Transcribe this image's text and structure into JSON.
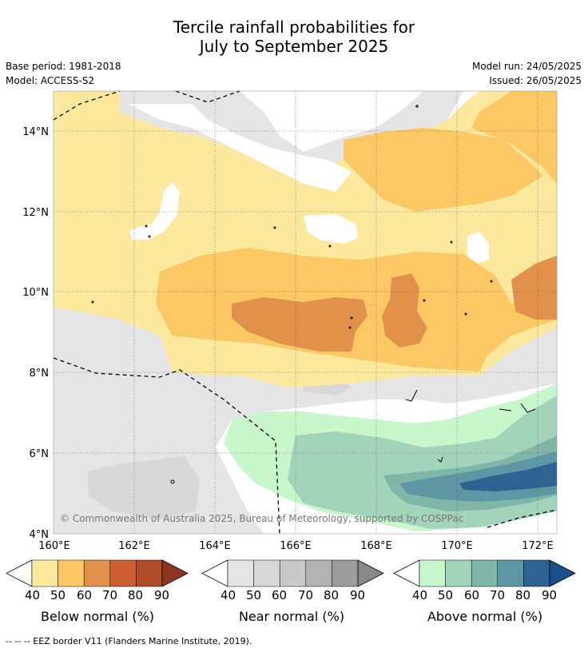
{
  "title": {
    "line1": "Tercile rainfall probabilities for",
    "line2": "July to September 2025"
  },
  "meta": {
    "base_period": "Base period: 1981-2018",
    "model": "Model: ACCESS-S2",
    "model_run": "Model run: 24/05/2025",
    "issued": "Issued: 26/05/2025"
  },
  "map": {
    "lat_labels": [
      "14°N",
      "12°N",
      "10°N",
      "8°N",
      "6°N",
      "4°N"
    ],
    "lon_labels": [
      "160°E",
      "162°E",
      "164°E",
      "166°E",
      "168°E",
      "170°E",
      "172°E"
    ],
    "copyright": "© Commonwealth of Australia 2025, Bureau of Meteorology, supported by COSPPac",
    "colors": {
      "below": [
        "#fde99e",
        "#fbc864",
        "#e2914a",
        "#cc5e32",
        "#b04a28",
        "#8e3521"
      ],
      "near": [
        "#e5e5e5",
        "#d8d8d8",
        "#c8c8c8",
        "#b2b2b2",
        "#9c9c9c",
        "#888888"
      ],
      "above": [
        "#c8f7cc",
        "#a1d4b8",
        "#7fb6a8",
        "#5e96a4",
        "#2e6293",
        "#1a4f8a"
      ]
    }
  },
  "colorbars": {
    "ticks": [
      "40",
      "50",
      "60",
      "70",
      "80",
      "90"
    ],
    "below_label": "Below normal (%)",
    "near_label": "Near normal (%)",
    "above_label": "Above normal (%)"
  },
  "footnote": "--  --  -- EEZ border V11 (Flanders Marine Institute, 2019)."
}
